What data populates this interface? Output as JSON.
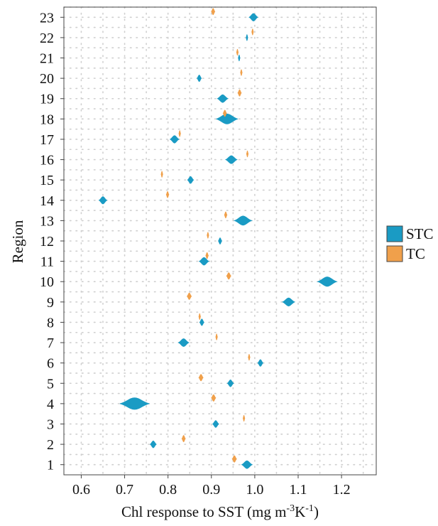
{
  "chart_data": {
    "type": "violin",
    "orientation": "horizontal",
    "xlabel": "Chl response to SST (mg m",
    "xlabel_sup1": "-3",
    "xlabel_mid": "K",
    "xlabel_sup2": "-1",
    "xlabel_end": ")",
    "ylabel": "Region",
    "xlim": [
      0.56,
      1.28
    ],
    "xticks": [
      0.6,
      0.7,
      0.8,
      0.9,
      1.0,
      1.1,
      1.2
    ],
    "xtick_labels": [
      "0.6",
      "0.7",
      "0.8",
      "0.9",
      "1.0",
      "1.1",
      "1.2"
    ],
    "ylim": [
      0.5,
      23.5
    ],
    "categories": [
      "1",
      "2",
      "3",
      "4",
      "5",
      "6",
      "7",
      "8",
      "9",
      "10",
      "11",
      "12",
      "13",
      "14",
      "15",
      "16",
      "17",
      "18",
      "19",
      "20",
      "21",
      "22",
      "23"
    ],
    "grid": true,
    "legend_position": "right",
    "series": [
      {
        "name": "STC",
        "color": "#1a9bc4",
        "centers": [
          0.982,
          0.766,
          0.91,
          0.723,
          0.944,
          1.013,
          0.836,
          0.878,
          1.078,
          1.167,
          0.883,
          0.92,
          0.973,
          0.65,
          0.852,
          0.946,
          0.815,
          0.936,
          0.926,
          0.872,
          0.964,
          0.982,
          0.997
        ],
        "half_widths": [
          0.012,
          0.007,
          0.007,
          0.034,
          0.007,
          0.006,
          0.012,
          0.005,
          0.014,
          0.022,
          0.011,
          0.004,
          0.02,
          0.009,
          0.007,
          0.013,
          0.01,
          0.025,
          0.012,
          0.005,
          0.002,
          0.002,
          0.01
        ]
      },
      {
        "name": "TC",
        "color": "#f0a04b",
        "offset": 0.28,
        "centers": [
          0.953,
          0.836,
          0.975,
          0.905,
          0.876,
          0.987,
          0.912,
          0.873,
          0.849,
          0.94,
          0.89,
          0.892,
          0.933,
          0.799,
          0.786,
          0.983,
          0.827,
          0.931,
          0.965,
          0.969,
          0.96,
          0.995,
          0.904
        ],
        "half_widths": [
          0.005,
          0.004,
          0.002,
          0.005,
          0.005,
          0.002,
          0.002,
          0.002,
          0.005,
          0.005,
          0.003,
          0.002,
          0.003,
          0.003,
          0.002,
          0.002,
          0.002,
          0.004,
          0.004,
          0.002,
          0.002,
          0.002,
          0.004
        ]
      }
    ]
  }
}
